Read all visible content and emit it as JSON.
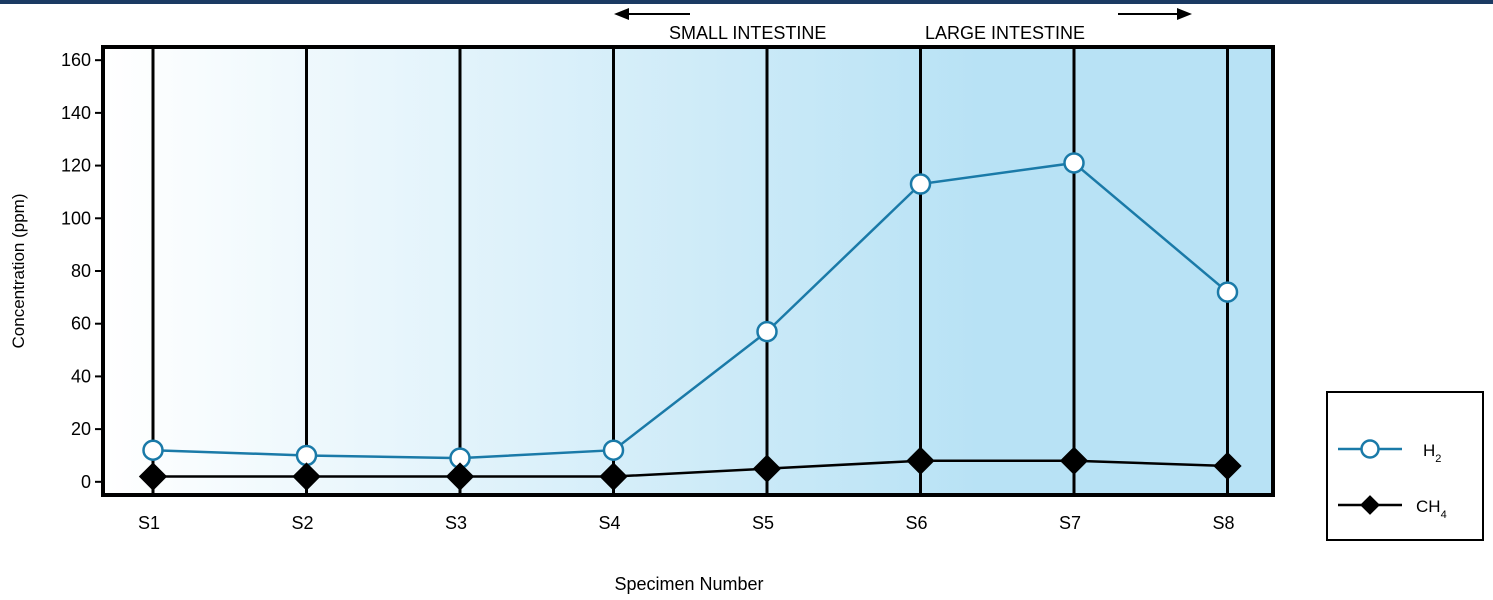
{
  "chart_data": {
    "type": "line",
    "title": "",
    "xlabel": "Specimen Number",
    "ylabel": "Concentration (ppm)",
    "ylim": [
      -5,
      165
    ],
    "yticks": [
      0,
      20,
      40,
      60,
      80,
      100,
      120,
      140,
      160
    ],
    "grid": "vertical lines at each specimen",
    "categories": [
      "S1",
      "S2",
      "S3",
      "S4",
      "S5",
      "S6",
      "S7",
      "S8"
    ],
    "series": [
      {
        "name": "H",
        "subscript": "2",
        "color": "#1a7aa8",
        "marker": "open-circle",
        "values": [
          12,
          10,
          9,
          12,
          57,
          113,
          121,
          72
        ]
      },
      {
        "name": "CH",
        "subscript": "4",
        "color": "#000000",
        "marker": "filled-diamond",
        "values": [
          2,
          2,
          2,
          2,
          5,
          8,
          8,
          6
        ]
      }
    ],
    "annotations": {
      "left": "SMALL INTESTINE",
      "right": "LARGE INTESTINE"
    },
    "background_gradient": [
      "#ffffff",
      "#b8e2f5"
    ],
    "legend": "outside right, bottom"
  }
}
